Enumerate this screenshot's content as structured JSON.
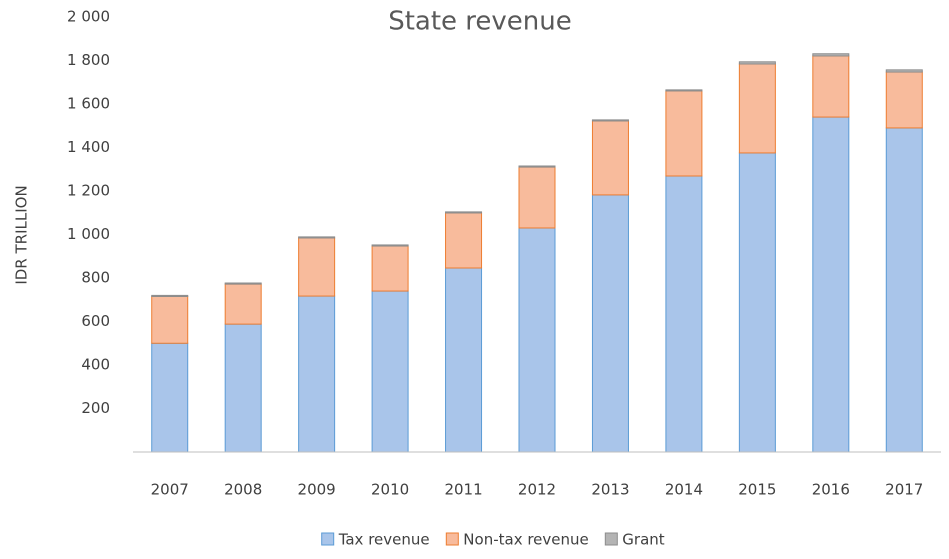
{
  "chart_data": {
    "type": "stacked_bar",
    "title": "State revenue",
    "y_label": "IDR TRILLION",
    "categories": [
      "2007",
      "2008",
      "2009",
      "2010",
      "2011",
      "2012",
      "2013",
      "2014",
      "2015",
      "2016",
      "2017"
    ],
    "series": [
      {
        "name": "Tax revenue",
        "color": "#a9c5ea",
        "values": [
          500,
          588,
          717,
          740,
          846,
          1030,
          1182,
          1269,
          1375,
          1540,
          1490
        ]
      },
      {
        "name": "Non-tax revenue",
        "color": "#f8bb9c",
        "values": [
          215,
          184,
          267,
          207,
          253,
          280,
          340,
          391,
          409,
          281,
          257
        ]
      },
      {
        "name": "Grant",
        "color": "#b4b4b4",
        "values": [
          5,
          5,
          5,
          5,
          5,
          5,
          5,
          5,
          10,
          10,
          10
        ]
      }
    ],
    "ylim": [
      0,
      2000
    ],
    "yticks": [
      200,
      400,
      600,
      800,
      {
        "value": 1000,
        "label": "1 000"
      },
      {
        "value": 1200,
        "label": "1 200"
      },
      {
        "value": 1400,
        "label": "1 400"
      },
      {
        "value": 1600,
        "label": "1 600"
      },
      {
        "value": 1800,
        "label": "1 800"
      },
      {
        "value": 2000,
        "label": "2 000"
      }
    ],
    "grid": false,
    "legend": "bottom"
  }
}
